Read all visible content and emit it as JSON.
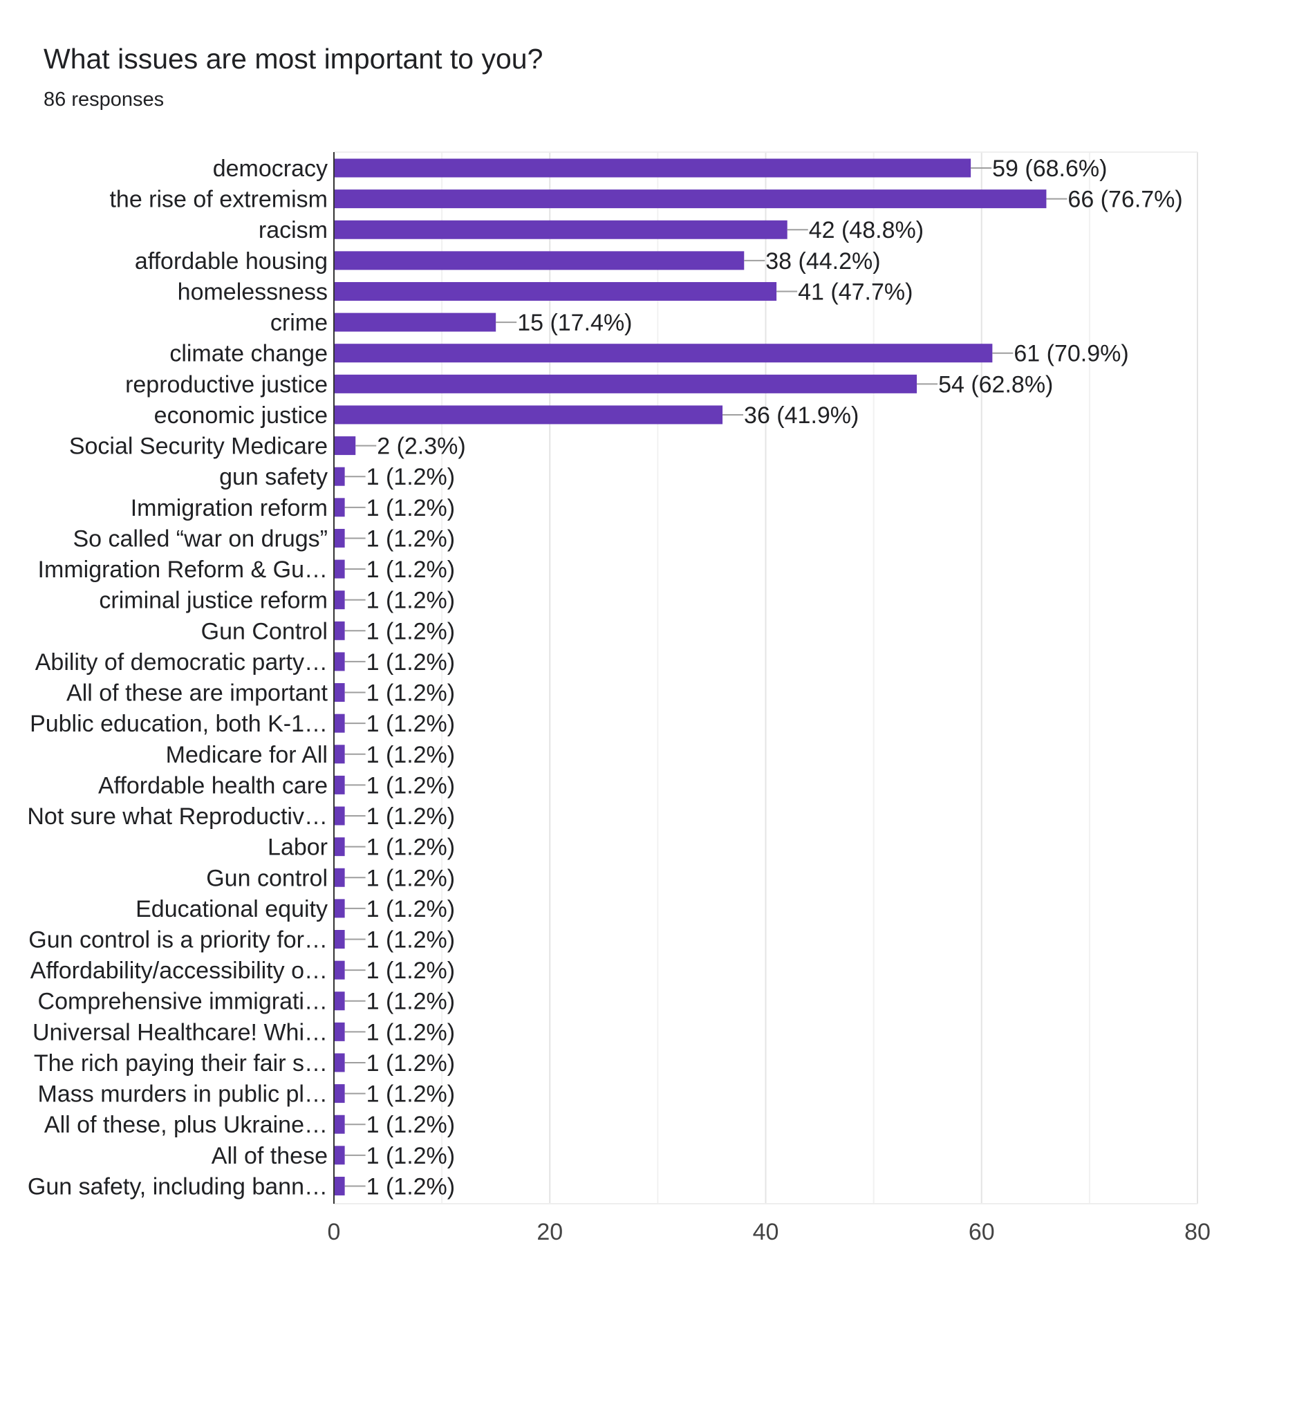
{
  "chart_data": {
    "type": "bar",
    "orientation": "horizontal",
    "title": "What issues are most important to you?",
    "subtitle": "86 responses",
    "bar_color": "#673ab7",
    "xlim": [
      0,
      80
    ],
    "xticks": [
      "0",
      "20",
      "40",
      "60",
      "80"
    ],
    "grid": true,
    "categories": [
      "democracy",
      "the rise of extremism",
      "racism",
      "affordable housing",
      "homelessness",
      "crime",
      "climate change",
      "reproductive justice",
      "economic justice",
      "Social Security Medicare",
      "gun safety",
      "Immigration reform",
      "So called “war on drugs”",
      "Immigration Reform & Gu…",
      "criminal justice reform",
      "Gun Control",
      "Ability of democratic party…",
      "All of these are important",
      "Public education, both K-1…",
      "Medicare for All",
      "Affordable health care",
      "Not sure what Reproductiv…",
      "Labor",
      "Gun control",
      "Educational equity",
      "Gun control is a priority for…",
      "Affordability/accessibility o…",
      "Comprehensive immigrati…",
      "Universal Healthcare! Whi…",
      "The rich paying their fair s…",
      "Mass murders in public pl…",
      "All of these, plus Ukraine…",
      "All of these",
      "Gun safety, including bann…"
    ],
    "values": [
      59,
      66,
      42,
      38,
      41,
      15,
      61,
      54,
      36,
      2,
      1,
      1,
      1,
      1,
      1,
      1,
      1,
      1,
      1,
      1,
      1,
      1,
      1,
      1,
      1,
      1,
      1,
      1,
      1,
      1,
      1,
      1,
      1,
      1
    ],
    "value_labels": [
      "59 (68.6%)",
      "66 (76.7%)",
      "42 (48.8%)",
      "38 (44.2%)",
      "41 (47.7%)",
      "15 (17.4%)",
      "61 (70.9%)",
      "54 (62.8%)",
      "36 (41.9%)",
      "2 (2.3%)",
      "1 (1.2%)",
      "1 (1.2%)",
      "1 (1.2%)",
      "1 (1.2%)",
      "1 (1.2%)",
      "1 (1.2%)",
      "1 (1.2%)",
      "1 (1.2%)",
      "1 (1.2%)",
      "1 (1.2%)",
      "1 (1.2%)",
      "1 (1.2%)",
      "1 (1.2%)",
      "1 (1.2%)",
      "1 (1.2%)",
      "1 (1.2%)",
      "1 (1.2%)",
      "1 (1.2%)",
      "1 (1.2%)",
      "1 (1.2%)",
      "1 (1.2%)",
      "1 (1.2%)",
      "1 (1.2%)",
      "1 (1.2%)"
    ]
  }
}
